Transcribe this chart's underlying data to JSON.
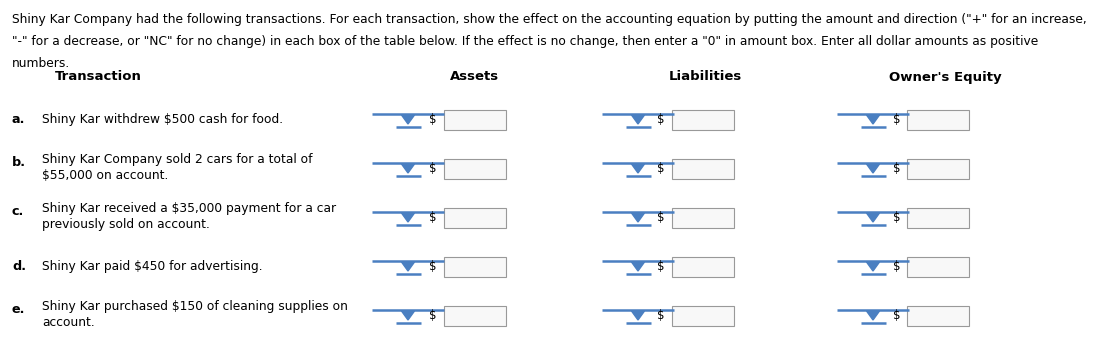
{
  "line1": "Shiny Kar Company had the following transactions. For each transaction, show the effect on the accounting equation by putting the amount and direction (\"+\" for an increase,",
  "line2": "\"-\" for a decrease, or \"NC\" for no change) in each box of the table below. If the effect is no change, then enter a \"0\" in amount box. Enter all dollar amounts as positive",
  "line3": "numbers.",
  "header_transaction": "Transaction",
  "header_assets": "Assets",
  "header_liabilities": "Liabilities",
  "header_equity": "Owner's Equity",
  "transactions": [
    {
      "label": "a.",
      "text1": "Shiny Kar withdrew $500 cash for food.",
      "text2": ""
    },
    {
      "label": "b.",
      "text1": "Shiny Kar Company sold 2 cars for a total of",
      "text2": "$55,000 on account."
    },
    {
      "label": "c.",
      "text1": "Shiny Kar received a $35,000 payment for a car",
      "text2": "previously sold on account."
    },
    {
      "label": "d.",
      "text1": "Shiny Kar paid $450 for advertising.",
      "text2": ""
    },
    {
      "label": "e.",
      "text1": "Shiny Kar purchased $150 of cleaning supplies on",
      "text2": "account."
    }
  ],
  "bg_color": "#ffffff",
  "text_color": "#000000",
  "title_fontsize": 8.8,
  "header_fontsize": 9.5,
  "label_fontsize": 9.2,
  "body_fontsize": 8.8,
  "dropdown_color": "#4a7fc1",
  "box_edge_color": "#999999",
  "box_face_color": "#f8f8f8",
  "figwidth": 10.94,
  "figheight": 3.45,
  "dpi": 100
}
